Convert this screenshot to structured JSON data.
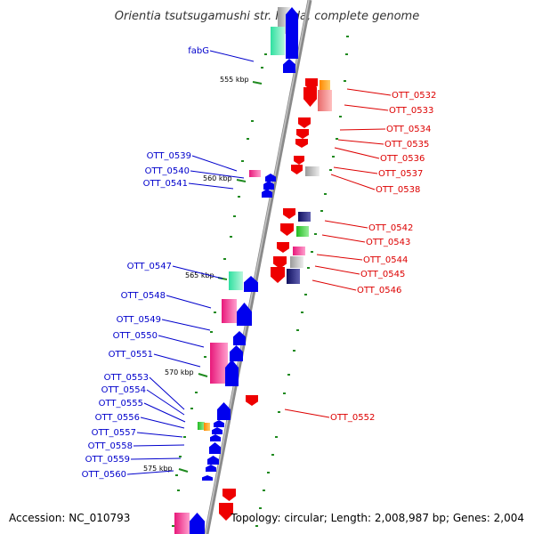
{
  "title": "Orientia tsutsugamushi str. Ikeda, complete genome",
  "accession": "Accession: NC_010793",
  "summary": "Topology: circular; Length: 2,008,987 bp; Genes: 2,004",
  "colors": {
    "backbone": "#8a8a8a",
    "tick": "#1f8a1f",
    "left_label": "#0000cc",
    "right_label": "#dd0000",
    "forward_gene": "#0000ee",
    "reverse_gene": "#ee0000"
  },
  "kbp_marks": [
    "555 kbp",
    "560 kbp",
    "565 kbp",
    "570 kbp",
    "575 kbp"
  ],
  "left_labels": [
    "fabG",
    "OTT_0539",
    "OTT_0540",
    "OTT_0541",
    "OTT_0547",
    "OTT_0548",
    "OTT_0549",
    "OTT_0550",
    "OTT_0551",
    "OTT_0553",
    "OTT_0554",
    "OTT_0555",
    "OTT_0556",
    "OTT_0557",
    "OTT_0558",
    "OTT_0559",
    "OTT_0560"
  ],
  "right_labels": [
    "OTT_0532",
    "OTT_0533",
    "OTT_0534",
    "OTT_0535",
    "OTT_0536",
    "OTT_0537",
    "OTT_0538",
    "OTT_0542",
    "OTT_0543",
    "OTT_0544",
    "OTT_0545",
    "OTT_0546",
    "OTT_0552"
  ]
}
